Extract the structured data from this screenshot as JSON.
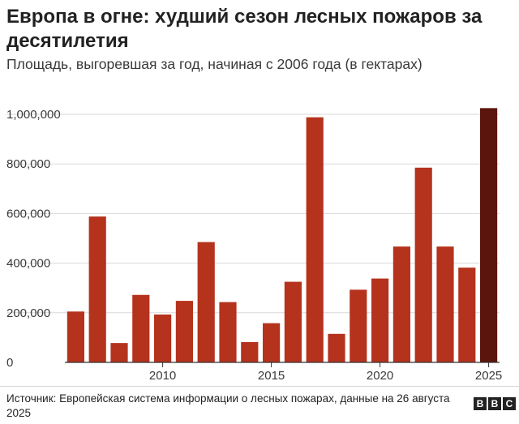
{
  "header": {
    "title": "Европа в огне: худший сезон лесных пожаров за десятилетия",
    "subtitle": "Площадь, выгоревшая за год, начиная с 2006 года (в гектарах)"
  },
  "chart_data": {
    "type": "bar",
    "title": "Европа в огне: худший сезон лесных пожаров за десятилетия",
    "subtitle": "Площадь, выгоревшая за год, начиная с 2006 года (в гектарах)",
    "xlabel": "",
    "ylabel": "",
    "categories": [
      "2006",
      "2007",
      "2008",
      "2009",
      "2010",
      "2011",
      "2012",
      "2013",
      "2014",
      "2015",
      "2016",
      "2017",
      "2018",
      "2019",
      "2020",
      "2021",
      "2022",
      "2023",
      "2024",
      "2025"
    ],
    "values": [
      205000,
      588000,
      78000,
      272000,
      193000,
      248000,
      485000,
      243000,
      82000,
      158000,
      325000,
      988000,
      115000,
      293000,
      338000,
      467000,
      785000,
      467000,
      382000,
      1025000
    ],
    "ylim": [
      0,
      1000000
    ],
    "yticks": [
      0,
      200000,
      400000,
      600000,
      800000,
      1000000
    ],
    "ytick_labels": [
      "0",
      "200,000",
      "400,000",
      "600,000",
      "800,000",
      "1,000,000"
    ],
    "xticks": [
      "2010",
      "2015",
      "2020",
      "2025"
    ],
    "grid": true,
    "legend": "none",
    "colors": {
      "bar": "#b5321d",
      "highlight": "#5b150c",
      "grid": "#d9d9d9",
      "axis": "#333333"
    },
    "highlight_category": "2025"
  },
  "footer": {
    "source": "Источник: Европейская система информации о лесных пожарах, данные на 26 августа 2025",
    "logo": [
      "B",
      "B",
      "C"
    ]
  }
}
